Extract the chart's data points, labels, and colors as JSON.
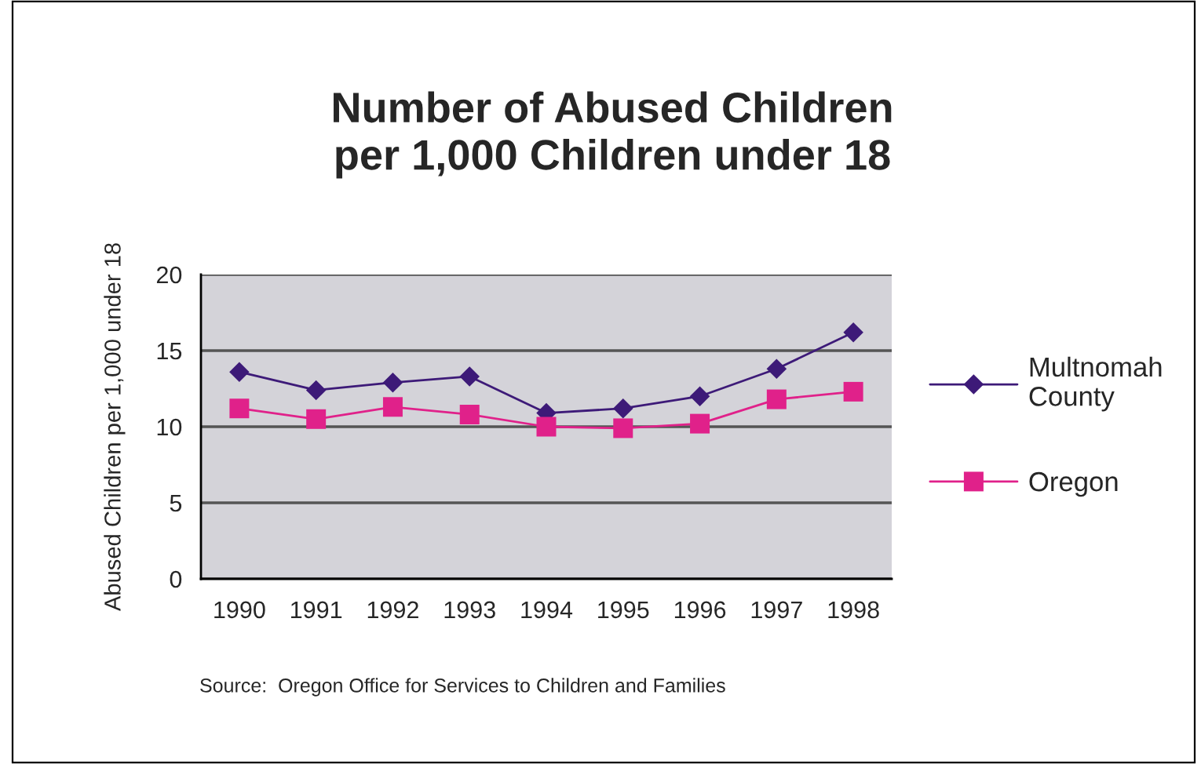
{
  "chart_data": {
    "type": "line",
    "title": "Number of Abused Children\nper 1,000 Children under 18",
    "ylabel": "Abused Children per 1,000 under 18",
    "annotations": [
      "Source:  Oregon Office for Services to Children and Families"
    ],
    "categories": [
      "1990",
      "1991",
      "1992",
      "1993",
      "1994",
      "1995",
      "1996",
      "1997",
      "1998"
    ],
    "series": [
      {
        "name": "Multnomah\nCounty",
        "color": "#3d1a78",
        "marker": "diamond",
        "values": [
          13.6,
          12.4,
          12.9,
          13.3,
          10.9,
          11.2,
          12.0,
          13.8,
          16.2
        ]
      },
      {
        "name": "Oregon",
        "color": "#e0218a",
        "marker": "square",
        "values": [
          11.2,
          10.5,
          11.3,
          10.8,
          10.0,
          9.9,
          10.2,
          11.8,
          12.3
        ]
      }
    ],
    "ylim": [
      0,
      20
    ],
    "yticks": [
      0,
      5,
      10,
      15,
      20
    ],
    "grid": "y",
    "legend": "right"
  }
}
